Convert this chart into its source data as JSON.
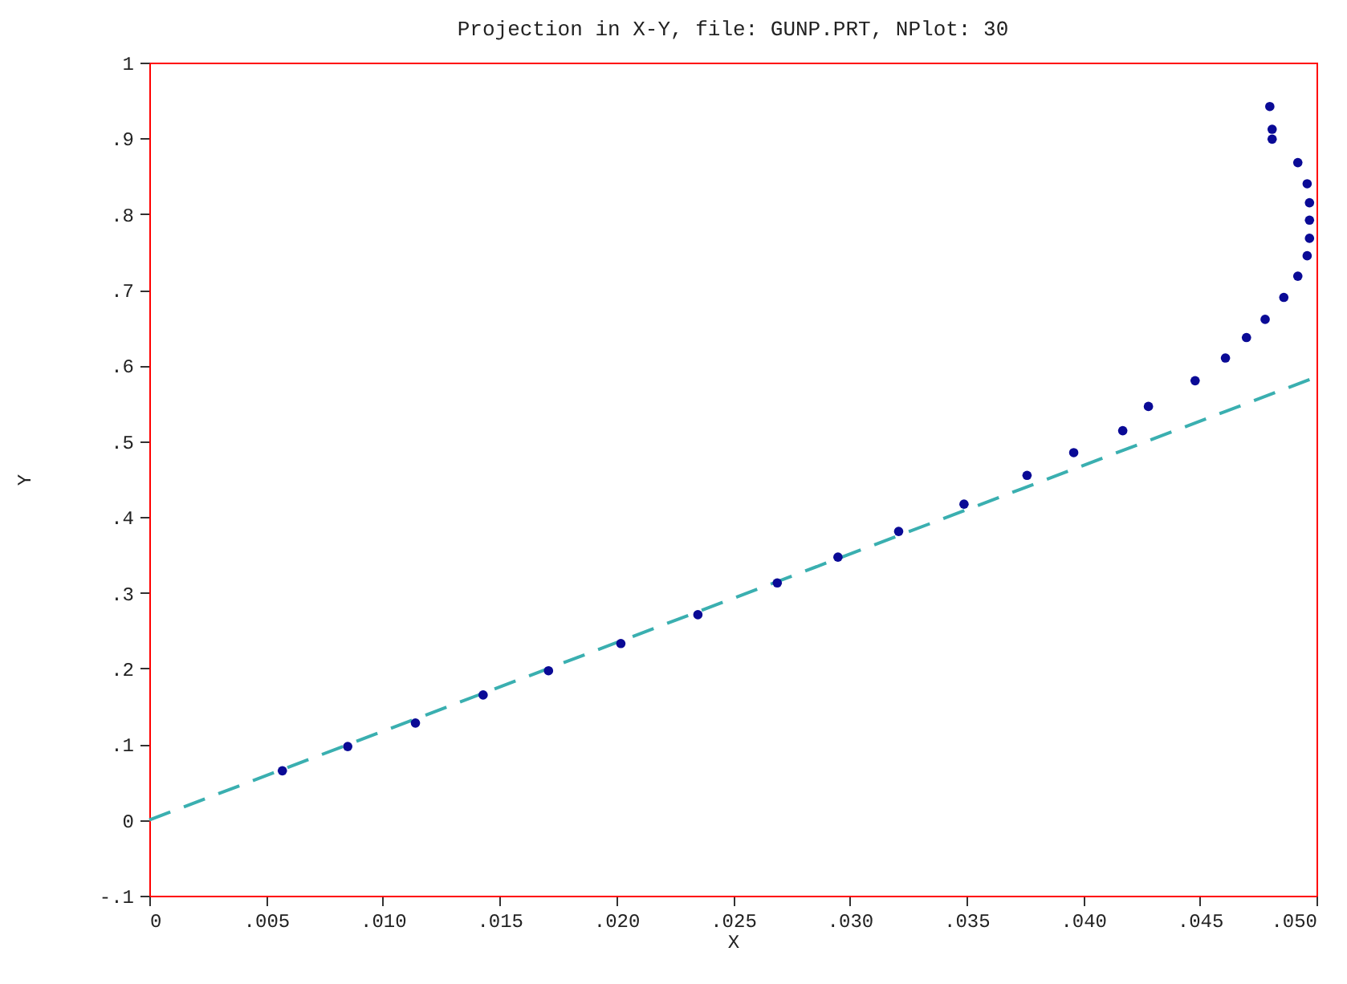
{
  "chart_data": {
    "type": "scatter",
    "title": "Projection in X-Y, file: GUNP.PRT, NPlot: 30",
    "xlabel": "X",
    "ylabel": "Y",
    "grid": false,
    "xlim": [
      0,
      0.05
    ],
    "ylim": [
      -0.1,
      1
    ],
    "xticks": [
      0,
      {
        "value": 0.005,
        "label": ".005"
      },
      {
        "value": 0.01,
        "label": ".010"
      },
      {
        "value": 0.015,
        "label": ".015"
      },
      {
        "value": 0.02,
        "label": ".020"
      },
      {
        "value": 0.025,
        "label": ".025"
      },
      {
        "value": 0.03,
        "label": ".030"
      },
      {
        "value": 0.035,
        "label": ".035"
      },
      {
        "value": 0.04,
        "label": ".040"
      },
      {
        "value": 0.045,
        "label": ".045"
      },
      {
        "value": 0.05,
        "label": ".050"
      }
    ],
    "yticks": [
      {
        "value": -0.1,
        "label": "-.1"
      },
      0,
      {
        "value": 0.1,
        "label": ".1"
      },
      {
        "value": 0.2,
        "label": ".2"
      },
      {
        "value": 0.3,
        "label": ".3"
      },
      {
        "value": 0.4,
        "label": ".4"
      },
      {
        "value": 0.5,
        "label": ".5"
      },
      {
        "value": 0.6,
        "label": ".6"
      },
      {
        "value": 0.7,
        "label": ".7"
      },
      {
        "value": 0.8,
        "label": ".8"
      },
      {
        "value": 0.9,
        "label": ".9"
      },
      1
    ],
    "series": [
      {
        "marker": "circle",
        "color": "#0a0a96",
        "x": [
          0.0057,
          0.0085,
          0.0114,
          0.0143,
          0.0171,
          0.0202,
          0.0235,
          0.0269,
          0.0295,
          0.0321,
          0.0349,
          0.0376,
          0.0396,
          0.0417,
          0.0428,
          0.0448,
          0.0461,
          0.047,
          0.0478,
          0.0486,
          0.0492,
          0.0496,
          0.0497,
          0.0497,
          0.0497,
          0.0496,
          0.0492,
          0.0481,
          0.0481,
          0.048
        ],
        "values": [
          0.065,
          0.097,
          0.128,
          0.165,
          0.197,
          0.233,
          0.271,
          0.313,
          0.347,
          0.381,
          0.417,
          0.455,
          0.485,
          0.514,
          0.546,
          0.58,
          0.61,
          0.637,
          0.661,
          0.69,
          0.718,
          0.745,
          0.768,
          0.792,
          0.815,
          0.84,
          0.868,
          0.899,
          0.912,
          0.942
        ]
      },
      {
        "type": "line",
        "color": "#3aafb0",
        "line_style": "dashed",
        "x": [
          0,
          0.05
        ],
        "values": [
          0,
          0.585
        ]
      }
    ]
  }
}
